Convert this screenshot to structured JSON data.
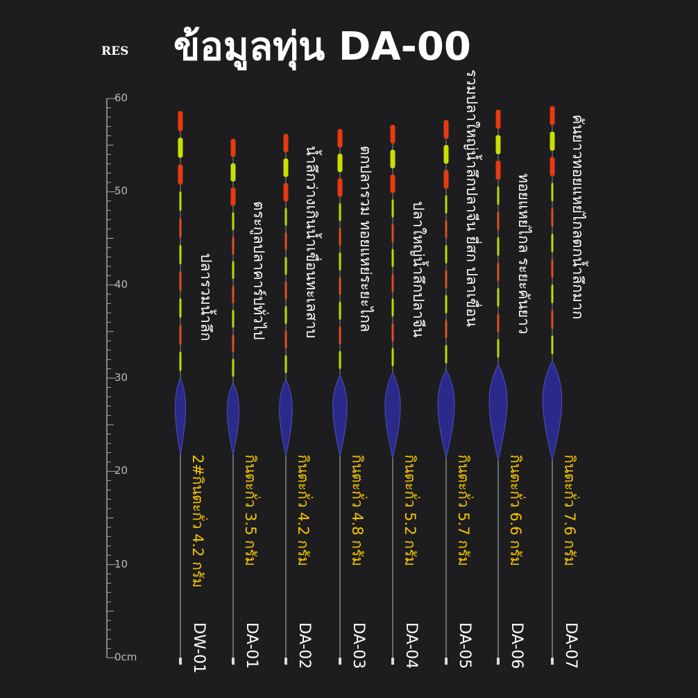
{
  "header": {
    "logo": "RES",
    "title": "ข้อมูลทุ่น DA-00"
  },
  "ruler": {
    "labels": [
      "60",
      "50",
      "40",
      "30",
      "20",
      "10",
      "0cm"
    ]
  },
  "floats": [
    {
      "model": "DW-01",
      "description": "ปลารวมน้ำลึก",
      "weight": "2#กินตะกั่ว 4.2 กรัม"
    },
    {
      "model": "DA-01",
      "description": "ตระกูลปลาคาร์ปทั่วไป",
      "weight": "กินตะกั่ว 3.5 กรัม"
    },
    {
      "model": "DA-02",
      "description": "น้ำลึกว่างเกินน้ำเขื่อนทะเลสาบ",
      "weight": "กินตะกั่ว 4.2 กรัม"
    },
    {
      "model": "DA-03",
      "description": "ตกปลารวม ทอยแหย่ระยะไกล",
      "weight": "กินตะกั่ว 4.8 กรัม"
    },
    {
      "model": "DA-04",
      "description": "ปลาใหญ่น้ำลึกปลาจีน",
      "weight": "กินตะกั่ว 5.2 กรัม"
    },
    {
      "model": "DA-05",
      "description": "รวมปลาใหญ่น้ำลึกปลาจีน ยี่สก ปลาเขื่อน",
      "weight": "กินตะกั่ว 5.7 กรัม"
    },
    {
      "model": "DA-06",
      "description": "ทอยแหย่ไกล ระยะคันยาว",
      "weight": "กินตะกั่ว 6.6 กรัม"
    },
    {
      "model": "DA-07",
      "description": "คันยาวทอยแหย่ไกลตกน้ำลึกมาก",
      "weight": "กินตะกั่ว 7.6 กรัม"
    }
  ]
}
